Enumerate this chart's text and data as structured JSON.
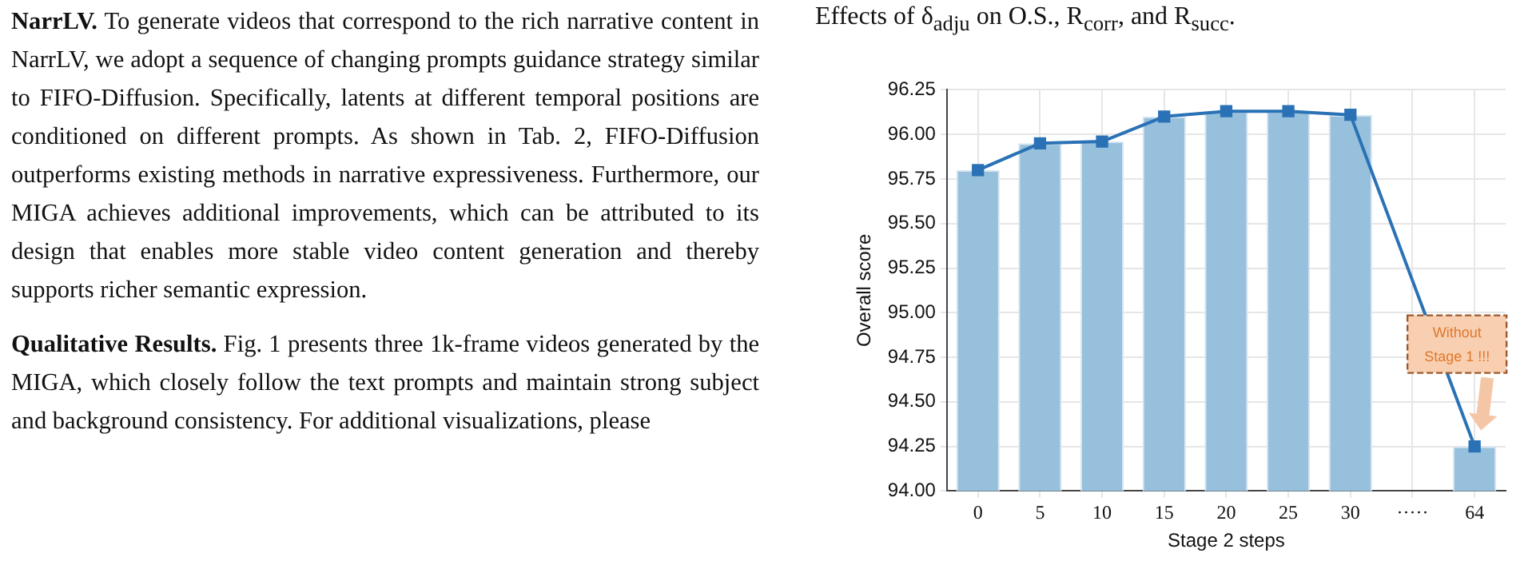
{
  "chart_data": {
    "type": "bar",
    "title": "Effects of δ$_{adju}$ on O.S., R$_{corr}$, and R$_{succ}$.",
    "xlabel": "Stage 2 steps",
    "ylabel": "Overall score",
    "categories": [
      "0",
      "5",
      "10",
      "15",
      "20",
      "25",
      "30",
      "·····",
      "64"
    ],
    "series": [
      {
        "color": "#97c0dd",
        "values": [
          95.8,
          95.95,
          95.96,
          96.1,
          96.13,
          96.13,
          96.11,
          null,
          94.25
        ]
      },
      {
        "type": "line",
        "color": "#2a72b5",
        "values": [
          95.8,
          95.95,
          95.96,
          96.1,
          96.13,
          96.13,
          96.11,
          null,
          94.25
        ]
      }
    ],
    "ylim": [
      94,
      96.25
    ],
    "yticks": [
      {
        "value": 94,
        "label": "94.00"
      },
      {
        "value": 94.25,
        "label": "94.25"
      },
      {
        "value": 94.5,
        "label": "94.50"
      },
      {
        "value": 94.75,
        "label": "94.75"
      },
      {
        "value": 95,
        "label": "95.00"
      },
      {
        "value": 95.25,
        "label": "95.25"
      },
      {
        "value": 95.5,
        "label": "95.50"
      },
      {
        "value": 95.75,
        "label": "95.75"
      },
      {
        "value": 96,
        "label": "96.00"
      },
      {
        "value": 96.25,
        "label": "96.25"
      }
    ],
    "grid": true,
    "marker": "square",
    "line_style": "solid",
    "legend": false,
    "annotations": [
      "Without Stage 1 !!!",
      "NarrLV.",
      " To generate videos that correspond to the rich narrative content in NarrLV, we adopt a sequence of changing prompts guidance strategy similar to FIFO-Diffusion. Specifically, latents at different temporal positions are conditioned on different prompts. As shown in Tab. 2, FIFO-Diffusion outperforms existing methods in narrative expressiveness. Furthermore, our MIGA achieves additional improvements, which can be attributed to its design that enables more stable video content generation and thereby supports richer semantic expression.",
      "Qualitative Results.",
      " Fig. 1 presents three 1k-frame videos generated by the MIGA, which closely follow the text prompts and maintain strong subject and background consistency. For additional visualizations, please"
    ]
  }
}
